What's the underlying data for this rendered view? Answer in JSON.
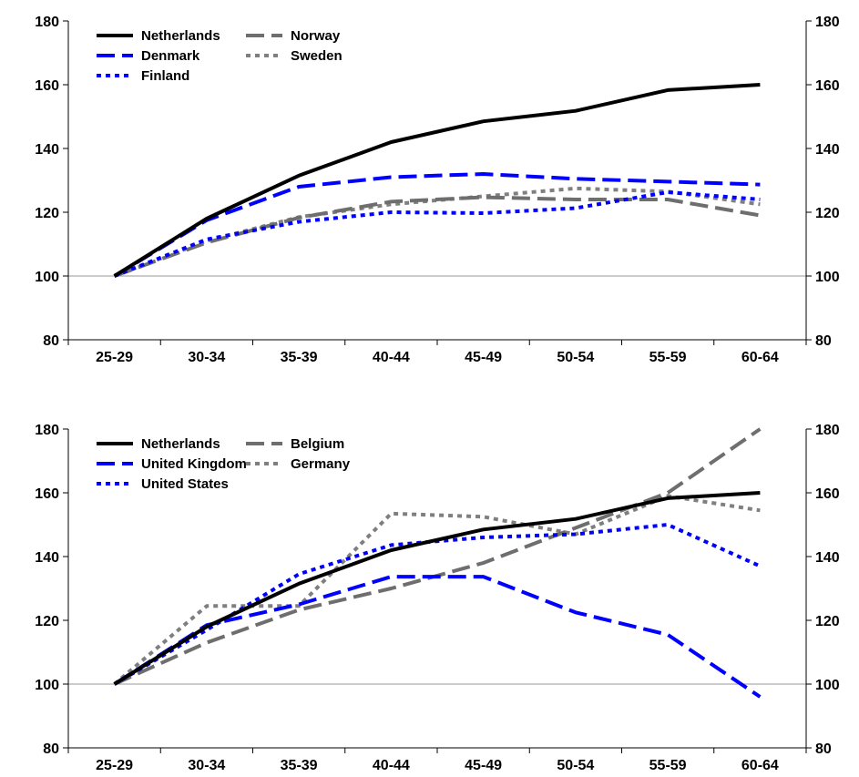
{
  "chart_data": [
    {
      "type": "line",
      "title": "",
      "xlabel": "",
      "ylabel": "",
      "categories": [
        "25-29",
        "30-34",
        "35-39",
        "40-44",
        "45-49",
        "50-54",
        "55-59",
        "60-64"
      ],
      "ylim": [
        80,
        180
      ],
      "yticks": [
        80,
        100,
        120,
        140,
        160,
        180
      ],
      "reference_line": 100,
      "secondary_y_axis": true,
      "grid": false,
      "legend_position": "top-left",
      "series": [
        {
          "name": "Netherlands",
          "color": "#000000",
          "style": "solid",
          "values": [
            100,
            118,
            131.5,
            142,
            148.5,
            151.8,
            158.3,
            160
          ]
        },
        {
          "name": "Denmark",
          "color": "#0000ff",
          "style": "dashed",
          "values": [
            100,
            117.5,
            128,
            131,
            132,
            130.5,
            129.6,
            128.7
          ]
        },
        {
          "name": "Finland",
          "color": "#0000ff",
          "style": "dotted",
          "values": [
            100,
            111.5,
            117,
            120,
            119.7,
            121.3,
            126.3,
            124
          ]
        },
        {
          "name": "Norway",
          "color": "#6e6e6e",
          "style": "dashed",
          "values": [
            100,
            110.5,
            118.3,
            123.3,
            124.7,
            124,
            124,
            119
          ]
        },
        {
          "name": "Sweden",
          "color": "#7f7f7f",
          "style": "dotted",
          "values": [
            100,
            111,
            118.5,
            122.5,
            125,
            127.5,
            126.5,
            122.5
          ]
        }
      ]
    },
    {
      "type": "line",
      "title": "",
      "xlabel": "",
      "ylabel": "",
      "categories": [
        "25-29",
        "30-34",
        "35-39",
        "40-44",
        "45-49",
        "50-54",
        "55-59",
        "60-64"
      ],
      "ylim": [
        80,
        180
      ],
      "yticks": [
        80,
        100,
        120,
        140,
        160,
        180
      ],
      "reference_line": 100,
      "secondary_y_axis": true,
      "grid": false,
      "legend_position": "top-left",
      "series": [
        {
          "name": "Netherlands",
          "color": "#000000",
          "style": "solid",
          "values": [
            100,
            118,
            131.5,
            142,
            148.5,
            151.8,
            158.3,
            160
          ]
        },
        {
          "name": "United Kingdom",
          "color": "#0000ff",
          "style": "dashed",
          "values": [
            100,
            118.5,
            125,
            133.7,
            133.7,
            122.5,
            115.5,
            96
          ]
        },
        {
          "name": "United States",
          "color": "#0000ff",
          "style": "dotted",
          "values": [
            100,
            117,
            134.5,
            143.6,
            146,
            147,
            150,
            137
          ]
        },
        {
          "name": "Belgium",
          "color": "#6e6e6e",
          "style": "dashed",
          "values": [
            100,
            113,
            123.3,
            130,
            138,
            149,
            160,
            180
          ]
        },
        {
          "name": "Germany",
          "color": "#7f7f7f",
          "style": "dotted",
          "values": [
            100,
            124.5,
            124.5,
            153.5,
            152.5,
            147,
            159,
            154.5
          ]
        }
      ]
    }
  ]
}
